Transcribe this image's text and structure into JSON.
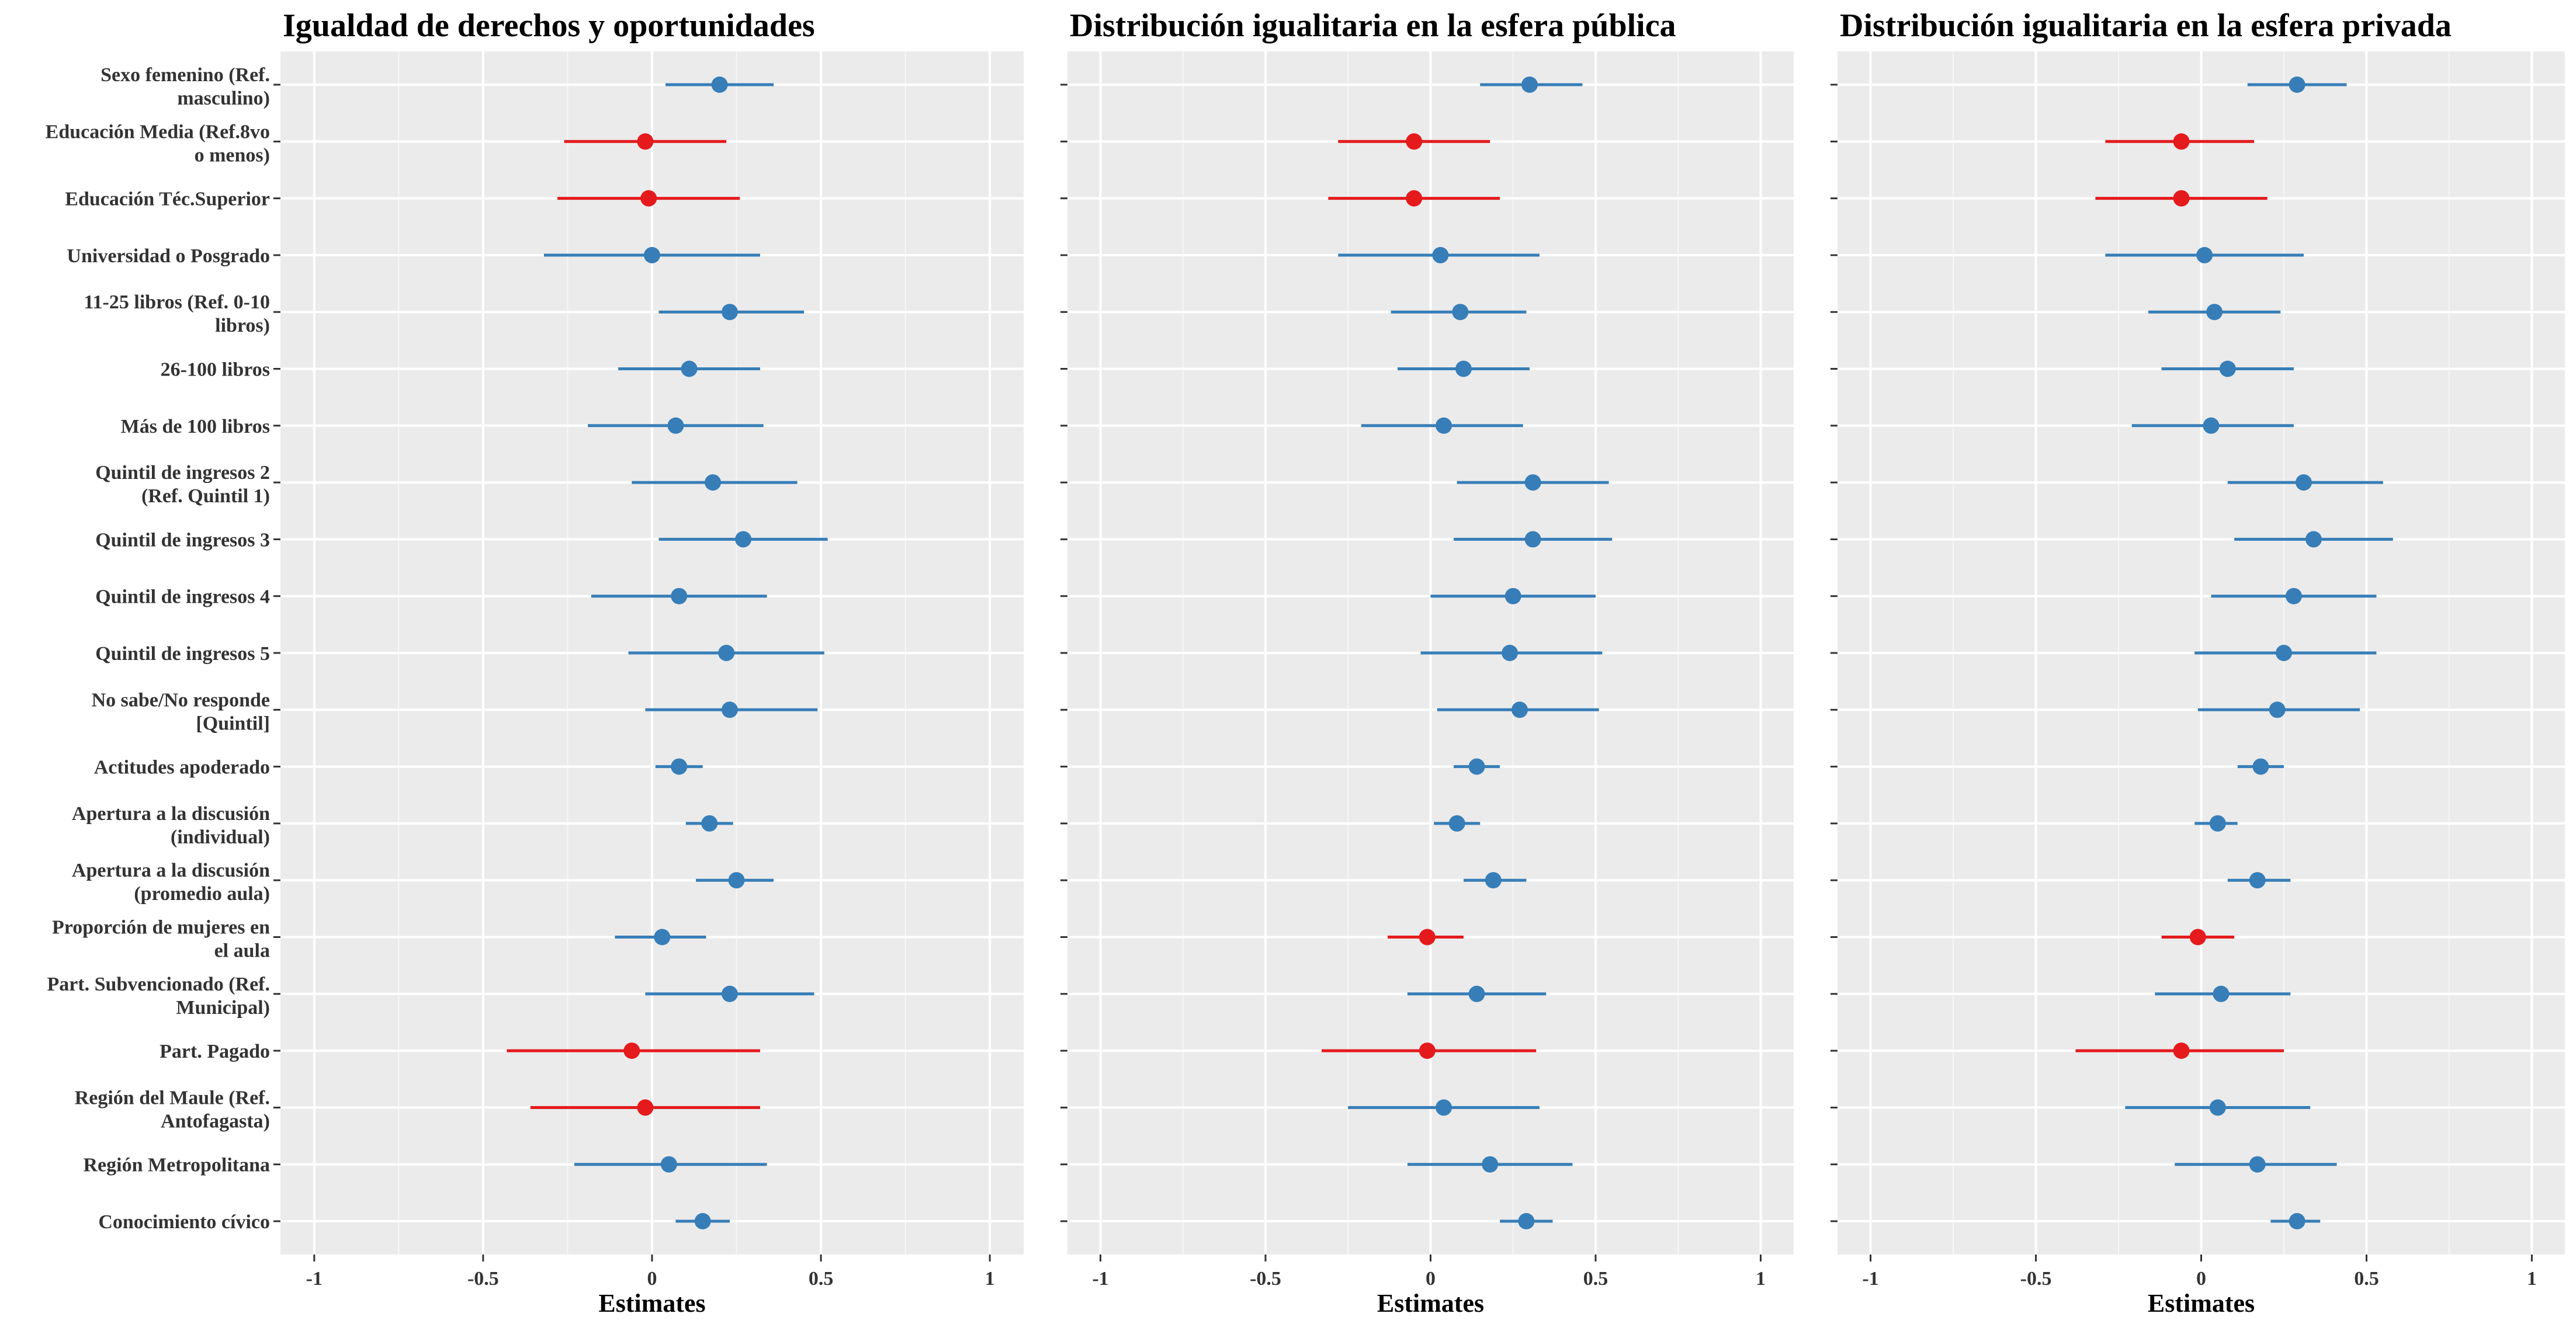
{
  "chart_data": {
    "type": "coefficient-plot",
    "xlabel": "Estimates",
    "xlim": [
      -1.1,
      1.1
    ],
    "xticks": [
      -1,
      -0.5,
      0,
      0.5,
      1
    ],
    "xtick_labels": [
      "-1",
      "-0.5",
      "0",
      "0.5",
      "1"
    ],
    "grid": true,
    "colors": {
      "positive": "#377eb8",
      "negative": "#e41a1c",
      "panel_bg": "#ebebeb",
      "grid": "#ffffff"
    },
    "categories": [
      [
        "Sexo femenino (Ref.",
        "masculino)"
      ],
      [
        "Educación Media (Ref.8vo",
        "o menos)"
      ],
      [
        "Educación Téc.Superior"
      ],
      [
        "Universidad o Posgrado"
      ],
      [
        "11-25 libros (Ref. 0-10",
        "libros)"
      ],
      [
        "26-100 libros"
      ],
      [
        "Más de 100 libros"
      ],
      [
        "Quintil de ingresos 2",
        "(Ref. Quintil 1)"
      ],
      [
        "Quintil de ingresos 3"
      ],
      [
        "Quintil de ingresos 4"
      ],
      [
        "Quintil de ingresos 5"
      ],
      [
        "No sabe/No responde",
        "[Quintil]"
      ],
      [
        "Actitudes apoderado"
      ],
      [
        "Apertura a la discusión",
        "(individual)"
      ],
      [
        "Apertura a la discusión",
        "(promedio aula)"
      ],
      [
        "Proporción de mujeres en",
        "el aula"
      ],
      [
        "Part. Subvencionado (Ref.",
        "Municipal)"
      ],
      [
        "Part. Pagado"
      ],
      [
        "Región del Maule (Ref.",
        "Antofagasta)"
      ],
      [
        "Región Metropolitana"
      ],
      [
        "Conocimiento cívico"
      ]
    ],
    "panels": [
      {
        "title": "Igualdad de derechos y oportunidades",
        "estimates": [
          0.2,
          -0.02,
          -0.01,
          0.0,
          0.23,
          0.11,
          0.07,
          0.18,
          0.27,
          0.08,
          0.22,
          0.23,
          0.08,
          0.17,
          0.25,
          0.03,
          0.23,
          -0.06,
          -0.02,
          0.05,
          0.15
        ],
        "lower": [
          0.04,
          -0.26,
          -0.28,
          -0.32,
          0.02,
          -0.1,
          -0.19,
          -0.06,
          0.02,
          -0.18,
          -0.07,
          -0.02,
          0.01,
          0.1,
          0.13,
          -0.11,
          -0.02,
          -0.43,
          -0.36,
          -0.23,
          0.07
        ],
        "upper": [
          0.36,
          0.22,
          0.26,
          0.32,
          0.45,
          0.32,
          0.33,
          0.43,
          0.52,
          0.34,
          0.51,
          0.49,
          0.15,
          0.24,
          0.36,
          0.16,
          0.48,
          0.32,
          0.32,
          0.34,
          0.23
        ]
      },
      {
        "title": "Distribución igualitaria en la esfera pública",
        "estimates": [
          0.3,
          -0.05,
          -0.05,
          0.03,
          0.09,
          0.1,
          0.04,
          0.31,
          0.31,
          0.25,
          0.24,
          0.27,
          0.14,
          0.08,
          0.19,
          -0.01,
          0.14,
          -0.01,
          0.04,
          0.18,
          0.29
        ],
        "lower": [
          0.15,
          -0.28,
          -0.31,
          -0.28,
          -0.12,
          -0.1,
          -0.21,
          0.08,
          0.07,
          0.0,
          -0.03,
          0.02,
          0.07,
          0.01,
          0.1,
          -0.13,
          -0.07,
          -0.33,
          -0.25,
          -0.07,
          0.21
        ],
        "upper": [
          0.46,
          0.18,
          0.21,
          0.33,
          0.29,
          0.3,
          0.28,
          0.54,
          0.55,
          0.5,
          0.52,
          0.51,
          0.21,
          0.15,
          0.29,
          0.1,
          0.35,
          0.32,
          0.33,
          0.43,
          0.37
        ]
      },
      {
        "title": "Distribución igualitaria en la esfera privada",
        "estimates": [
          0.29,
          -0.06,
          -0.06,
          0.01,
          0.04,
          0.08,
          0.03,
          0.31,
          0.34,
          0.28,
          0.25,
          0.23,
          0.18,
          0.05,
          0.17,
          -0.01,
          0.06,
          -0.06,
          0.05,
          0.17,
          0.29
        ],
        "lower": [
          0.14,
          -0.29,
          -0.32,
          -0.29,
          -0.16,
          -0.12,
          -0.21,
          0.08,
          0.1,
          0.03,
          -0.02,
          -0.01,
          0.11,
          -0.02,
          0.08,
          -0.12,
          -0.14,
          -0.38,
          -0.23,
          -0.08,
          0.21
        ],
        "upper": [
          0.44,
          0.16,
          0.2,
          0.31,
          0.24,
          0.28,
          0.28,
          0.55,
          0.58,
          0.53,
          0.53,
          0.48,
          0.25,
          0.11,
          0.27,
          0.1,
          0.27,
          0.25,
          0.33,
          0.41,
          0.36
        ]
      }
    ]
  }
}
